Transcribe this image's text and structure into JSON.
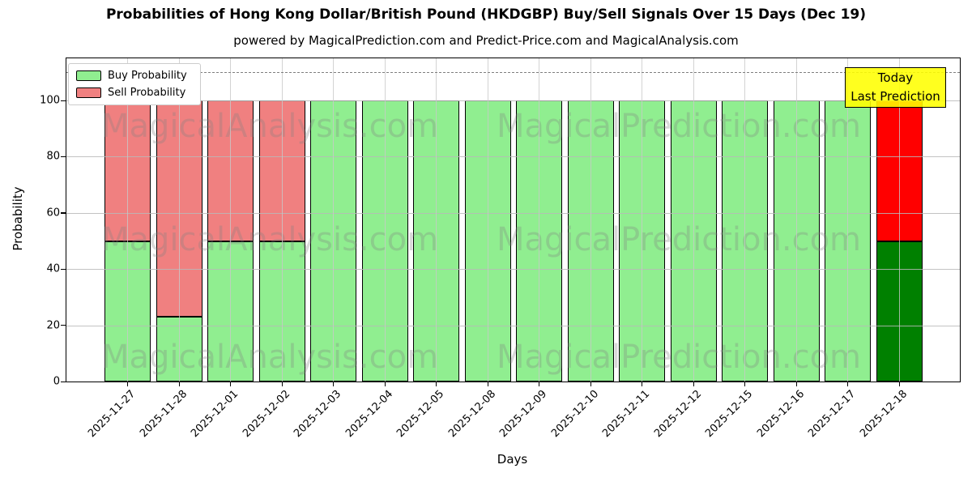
{
  "header": {
    "title": "Probabilities of Hong Kong Dollar/British Pound (HKDGBP) Buy/Sell Signals Over 15 Days (Dec 19)",
    "subtitle": "powered by MagicalPrediction.com and Predict-Price.com and MagicalAnalysis.com"
  },
  "legend": {
    "items": [
      {
        "label": "Buy Probability",
        "color": "#90EE90"
      },
      {
        "label": "Sell Probability",
        "color": "#F08080"
      }
    ]
  },
  "annotation_box": {
    "line1": "Today",
    "line2": "Last Prediction",
    "bg": "#FFFF00"
  },
  "watermarks": [
    "MagicalAnalysis.com",
    "MagicalPrediction.com"
  ],
  "chart_data": {
    "type": "bar",
    "stacked": true,
    "title": "Probabilities of Hong Kong Dollar/British Pound (HKDGBP) Buy/Sell Signals Over 15 Days (Dec 19)",
    "xlabel": "Days",
    "ylabel": "Probability",
    "categories": [
      "2025-11-27",
      "2025-11-28",
      "2025-12-01",
      "2025-12-02",
      "2025-12-03",
      "2025-12-04",
      "2025-12-05",
      "2025-12-08",
      "2025-12-09",
      "2025-12-10",
      "2025-12-11",
      "2025-12-12",
      "2025-12-15",
      "2025-12-16",
      "2025-12-17",
      "2025-12-18"
    ],
    "series": [
      {
        "name": "Buy Probability",
        "values": [
          50,
          23,
          50,
          50,
          100,
          100,
          100,
          100,
          100,
          100,
          100,
          100,
          100,
          100,
          100,
          50
        ],
        "color": "#90EE90",
        "today_color": "#008000"
      },
      {
        "name": "Sell Probability",
        "values": [
          50,
          77,
          50,
          50,
          0,
          0,
          0,
          0,
          0,
          0,
          0,
          0,
          0,
          0,
          0,
          50
        ],
        "color": "#F08080",
        "today_color": "#FF0000"
      }
    ],
    "today_index": 15,
    "yticks": [
      0,
      20,
      40,
      60,
      80,
      100
    ],
    "ylim": [
      0,
      115
    ],
    "dashed_line_y": 110,
    "grid": true,
    "legend_position": "upper left",
    "bar_edge_color": "#000000"
  }
}
